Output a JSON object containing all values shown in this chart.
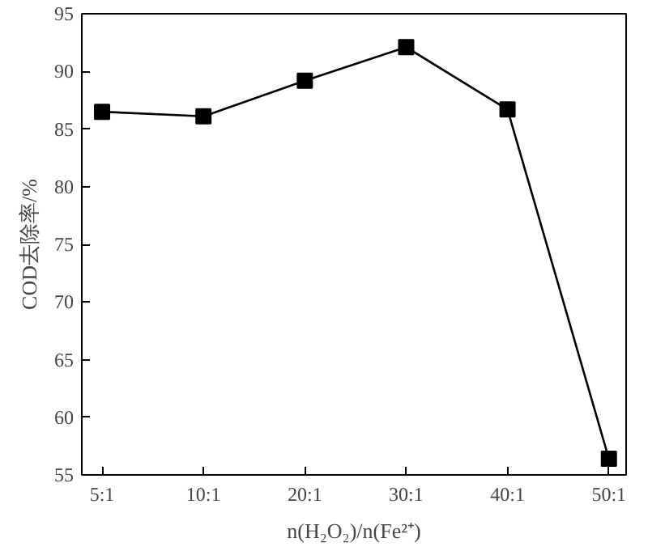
{
  "chart_data": {
    "type": "line",
    "xlabel": "n(H₂O₂)/n(Fe²⁺)",
    "ylabel": "COD去除率/%",
    "categories": [
      "5:1",
      "10:1",
      "20:1",
      "30:1",
      "40:1",
      "50:1"
    ],
    "series": [
      {
        "color": "#000000",
        "values": [
          86.5,
          86.1,
          89.2,
          92.1,
          86.7,
          56.4
        ]
      }
    ],
    "ylim": [
      55,
      95
    ],
    "yticks": [
      55,
      60,
      65,
      70,
      75,
      80,
      85,
      90,
      95
    ],
    "marker": "square",
    "line_style": "solid"
  }
}
